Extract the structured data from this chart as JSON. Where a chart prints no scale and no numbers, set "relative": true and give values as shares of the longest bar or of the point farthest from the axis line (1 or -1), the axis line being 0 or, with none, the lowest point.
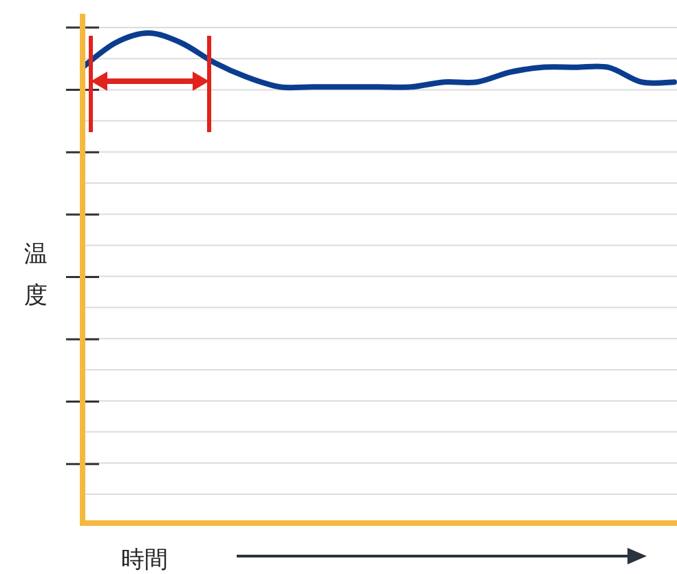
{
  "chart_data": {
    "type": "line",
    "relative": true,
    "xlabel": "時間",
    "ylabel": "温度",
    "grid": true,
    "categories": [
      null,
      null,
      null,
      null,
      null,
      null,
      null,
      null,
      null,
      null,
      null,
      null,
      null,
      null,
      null,
      null,
      null,
      null,
      null
    ],
    "series": [
      {
        "color": "#0b3d8f",
        "values": [
          0.93,
          0.98,
          1,
          0.98,
          0.94,
          0.91,
          0.89,
          0.89,
          0.89,
          0.89,
          0.89,
          0.9,
          0.9,
          0.92,
          0.93,
          0.93,
          0.93,
          0.9,
          0.9
        ]
      }
    ]
  }
}
